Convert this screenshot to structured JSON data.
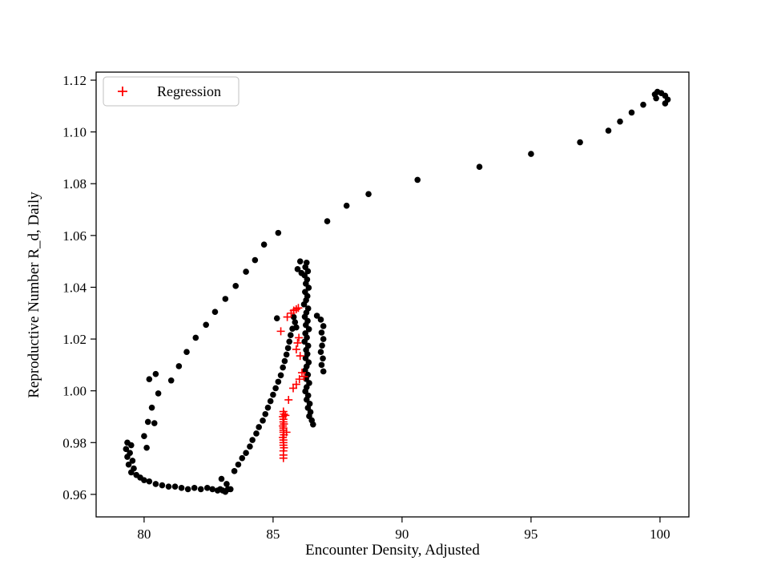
{
  "figure": {
    "background": "#ffffff"
  },
  "chart_data": {
    "type": "scatter",
    "title": "",
    "xlabel": "Encounter Density, Adjusted",
    "ylabel": "Reproductive Number R_d, Daily",
    "xlim": [
      78.14,
      101.12
    ],
    "ylim": [
      0.9513,
      1.1231
    ],
    "xticks": [
      80,
      85,
      90,
      95,
      100
    ],
    "yticks": [
      0.96,
      0.98,
      1.0,
      1.02,
      1.04,
      1.06,
      1.08,
      1.1,
      1.12
    ],
    "grid": false,
    "frame_color": "#000000",
    "legend": {
      "position": "upper-left",
      "entries": [
        {
          "label": "Regression",
          "marker": "plus",
          "color": "#ff0000"
        }
      ]
    },
    "series": [
      {
        "name": "trajectory",
        "marker": "circle",
        "color": "#000000",
        "size": 3.8,
        "points": [
          [
            100.2,
            1.111
          ],
          [
            100.3,
            1.1125
          ],
          [
            100.2,
            1.114
          ],
          [
            100.05,
            1.115
          ],
          [
            99.9,
            1.1155
          ],
          [
            99.8,
            1.1145
          ],
          [
            99.85,
            1.113
          ],
          [
            99.35,
            1.1105
          ],
          [
            98.9,
            1.1075
          ],
          [
            98.45,
            1.104
          ],
          [
            98.0,
            1.1005
          ],
          [
            96.9,
            1.096
          ],
          [
            95.0,
            1.0915
          ],
          [
            93.0,
            1.0865
          ],
          [
            90.6,
            1.0815
          ],
          [
            88.7,
            1.076
          ],
          [
            87.85,
            1.0715
          ],
          [
            87.1,
            1.0655
          ],
          [
            85.2,
            1.061
          ],
          [
            84.65,
            1.0565
          ],
          [
            84.3,
            1.0505
          ],
          [
            83.95,
            1.046
          ],
          [
            83.55,
            1.0405
          ],
          [
            83.15,
            1.0355
          ],
          [
            82.75,
            1.0305
          ],
          [
            82.4,
            1.0255
          ],
          [
            82.0,
            1.0205
          ],
          [
            81.65,
            1.015
          ],
          [
            81.35,
            1.0095
          ],
          [
            81.05,
            1.004
          ],
          [
            80.45,
            1.0065
          ],
          [
            80.2,
            1.0045
          ],
          [
            80.55,
            0.999
          ],
          [
            80.3,
            0.9935
          ],
          [
            80.15,
            0.988
          ],
          [
            80.4,
            0.9875
          ],
          [
            80.0,
            0.9825
          ],
          [
            80.1,
            0.978
          ],
          [
            79.35,
            0.98
          ],
          [
            79.5,
            0.979
          ],
          [
            79.3,
            0.9775
          ],
          [
            79.45,
            0.976
          ],
          [
            79.35,
            0.9745
          ],
          [
            79.55,
            0.973
          ],
          [
            79.4,
            0.9715
          ],
          [
            79.6,
            0.97
          ],
          [
            79.5,
            0.9685
          ],
          [
            79.7,
            0.9675
          ],
          [
            79.85,
            0.9665
          ],
          [
            80.0,
            0.9655
          ],
          [
            80.2,
            0.965
          ],
          [
            80.45,
            0.964
          ],
          [
            80.7,
            0.9635
          ],
          [
            80.95,
            0.963
          ],
          [
            81.2,
            0.963
          ],
          [
            81.45,
            0.9625
          ],
          [
            81.7,
            0.962
          ],
          [
            81.95,
            0.9625
          ],
          [
            82.2,
            0.962
          ],
          [
            82.45,
            0.9625
          ],
          [
            82.65,
            0.962
          ],
          [
            82.85,
            0.9615
          ],
          [
            83.05,
            0.9615
          ],
          [
            83.25,
            0.962
          ],
          [
            83.0,
            0.966
          ],
          [
            83.2,
            0.964
          ],
          [
            83.35,
            0.962
          ],
          [
            83.15,
            0.961
          ],
          [
            82.95,
            0.962
          ],
          [
            83.5,
            0.969
          ],
          [
            83.65,
            0.9715
          ],
          [
            83.8,
            0.974
          ],
          [
            83.95,
            0.976
          ],
          [
            84.1,
            0.9785
          ],
          [
            84.2,
            0.981
          ],
          [
            84.35,
            0.9835
          ],
          [
            84.45,
            0.986
          ],
          [
            84.6,
            0.9885
          ],
          [
            84.7,
            0.991
          ],
          [
            84.8,
            0.9935
          ],
          [
            84.9,
            0.996
          ],
          [
            85.0,
            0.9985
          ],
          [
            85.1,
            1.001
          ],
          [
            85.2,
            1.0035
          ],
          [
            85.3,
            1.006
          ],
          [
            85.38,
            1.009
          ],
          [
            85.45,
            1.0115
          ],
          [
            85.52,
            1.014
          ],
          [
            85.58,
            1.0165
          ],
          [
            85.63,
            1.019
          ],
          [
            85.68,
            1.0215
          ],
          [
            85.75,
            1.024
          ],
          [
            85.85,
            1.0265
          ],
          [
            85.8,
            1.0285
          ],
          [
            85.9,
            1.0245
          ],
          [
            85.15,
            1.028
          ],
          [
            86.05,
            1.05
          ],
          [
            85.95,
            1.047
          ],
          [
            86.1,
            1.0455
          ],
          [
            86.3,
            1.0495
          ],
          [
            86.25,
            1.0478
          ],
          [
            86.35,
            1.0462
          ],
          [
            86.22,
            1.0446
          ],
          [
            86.32,
            1.043
          ],
          [
            86.27,
            1.0414
          ],
          [
            86.38,
            1.0398
          ],
          [
            86.24,
            1.0382
          ],
          [
            86.33,
            1.0366
          ],
          [
            86.28,
            1.035
          ],
          [
            86.2,
            1.0334
          ],
          [
            86.36,
            1.0318
          ],
          [
            86.29,
            1.0302
          ],
          [
            86.23,
            1.0286
          ],
          [
            86.34,
            1.027
          ],
          [
            86.27,
            1.0254
          ],
          [
            86.39,
            1.0238
          ],
          [
            86.25,
            1.0222
          ],
          [
            86.31,
            1.0206
          ],
          [
            86.22,
            1.019
          ],
          [
            86.36,
            1.0174
          ],
          [
            86.28,
            1.0158
          ],
          [
            86.33,
            1.0142
          ],
          [
            86.26,
            1.0126
          ],
          [
            86.38,
            1.011
          ],
          [
            86.3,
            1.0094
          ],
          [
            86.24,
            1.0078
          ],
          [
            86.35,
            1.0062
          ],
          [
            86.28,
            1.0046
          ],
          [
            86.4,
            1.003
          ],
          [
            86.3,
            1.0014
          ],
          [
            86.25,
            0.9998
          ],
          [
            86.36,
            0.9982
          ],
          [
            86.3,
            0.9966
          ],
          [
            86.42,
            0.995
          ],
          [
            86.35,
            0.9934
          ],
          [
            86.45,
            0.9918
          ],
          [
            86.4,
            0.9902
          ],
          [
            86.5,
            0.9886
          ],
          [
            86.55,
            0.987
          ],
          [
            86.7,
            1.029
          ],
          [
            86.85,
            1.0275
          ],
          [
            86.95,
            1.025
          ],
          [
            86.88,
            1.0225
          ],
          [
            86.95,
            1.02
          ],
          [
            86.9,
            1.0175
          ],
          [
            86.85,
            1.015
          ],
          [
            86.93,
            1.0125
          ],
          [
            86.88,
            1.01
          ],
          [
            86.95,
            1.0075
          ]
        ]
      },
      {
        "name": "Regression",
        "marker": "plus",
        "color": "#ff0000",
        "size": 5,
        "points": [
          [
            85.3,
            1.023
          ],
          [
            85.55,
            1.0285
          ],
          [
            85.7,
            1.03
          ],
          [
            85.8,
            1.031
          ],
          [
            85.9,
            1.0315
          ],
          [
            85.98,
            1.032
          ],
          [
            86.0,
            1.0205
          ],
          [
            85.95,
            1.0185
          ],
          [
            85.9,
            1.016
          ],
          [
            86.05,
            1.0135
          ],
          [
            86.12,
            1.007
          ],
          [
            86.2,
            1.0055
          ],
          [
            86.02,
            1.0045
          ],
          [
            85.9,
            1.0025
          ],
          [
            85.78,
            1.001
          ],
          [
            85.6,
            0.9965
          ],
          [
            85.48,
            0.9905
          ],
          [
            85.52,
            0.984
          ],
          [
            85.4,
            0.992
          ],
          [
            85.42,
            0.991
          ],
          [
            85.38,
            0.99
          ],
          [
            85.4,
            0.989
          ],
          [
            85.4,
            0.988
          ],
          [
            85.42,
            0.9872
          ],
          [
            85.38,
            0.9864
          ],
          [
            85.4,
            0.9856
          ],
          [
            85.4,
            0.9848
          ],
          [
            85.4,
            0.984
          ],
          [
            85.42,
            0.983
          ],
          [
            85.38,
            0.982
          ],
          [
            85.4,
            0.981
          ],
          [
            85.4,
            0.98
          ],
          [
            85.4,
            0.979
          ],
          [
            85.42,
            0.978
          ],
          [
            85.4,
            0.9768
          ],
          [
            85.4,
            0.9752
          ],
          [
            85.4,
            0.974
          ]
        ]
      }
    ]
  }
}
